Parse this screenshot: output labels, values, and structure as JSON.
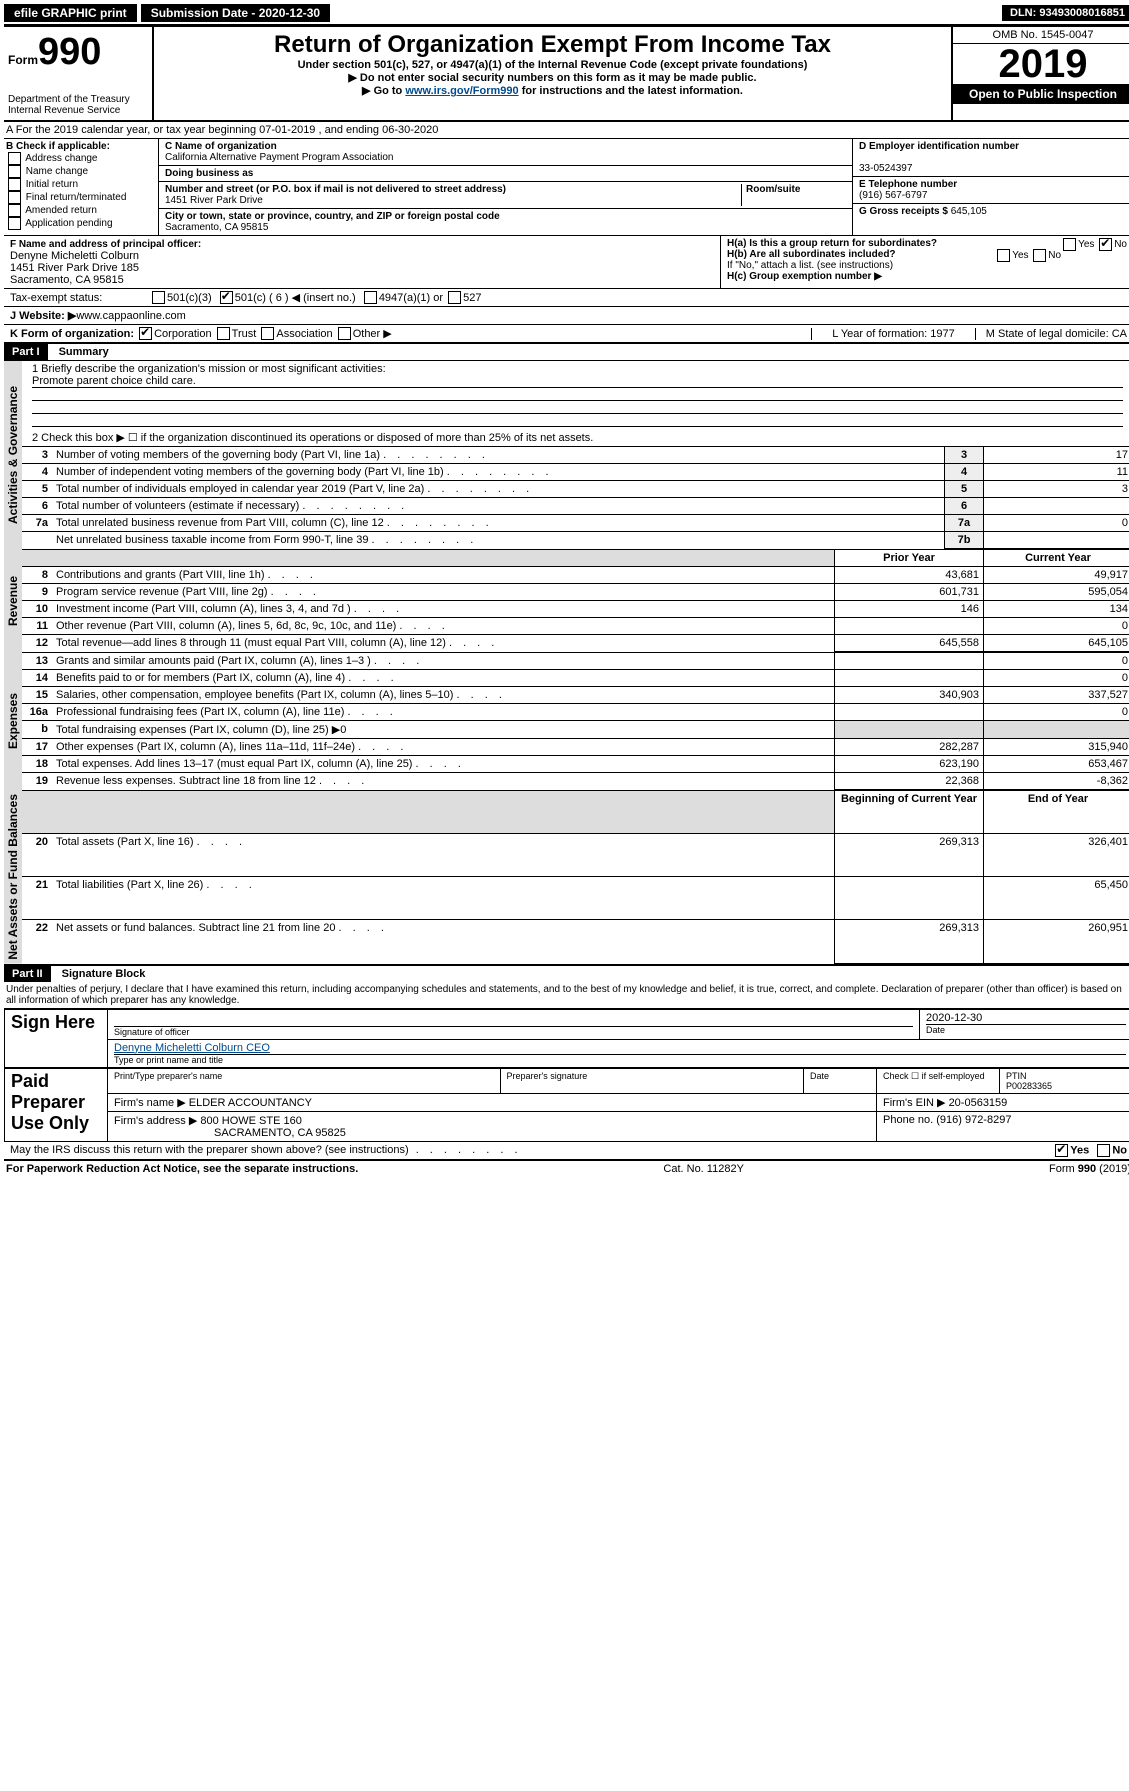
{
  "header": {
    "efile": "efile GRAPHIC print",
    "submission_label": "Submission Date - 2020-12-30",
    "dln": "DLN: 93493008016851"
  },
  "formhead": {
    "form_prefix": "Form",
    "form_number": "990",
    "dept": "Department of the Treasury\nInternal Revenue Service",
    "title": "Return of Organization Exempt From Income Tax",
    "subtitle": "Under section 501(c), 527, or 4947(a)(1) of the Internal Revenue Code (except private foundations)",
    "note1": "▶ Do not enter social security numbers on this form as it may be made public.",
    "note2_pre": "▶ Go to ",
    "note2_link": "www.irs.gov/Form990",
    "note2_post": " for instructions and the latest information.",
    "omb": "OMB No. 1545-0047",
    "year": "2019",
    "open": "Open to Public Inspection"
  },
  "lineA": {
    "text": "A For the 2019 calendar year, or tax year beginning 07-01-2019     , and ending 06-30-2020"
  },
  "boxB": {
    "label": "B Check if applicable:",
    "items": [
      "Address change",
      "Name change",
      "Initial return",
      "Final return/terminated",
      "Amended return",
      "Application pending"
    ]
  },
  "boxC": {
    "name_label": "C Name of organization",
    "name": "California Alternative Payment Program Association",
    "dba_label": "Doing business as",
    "addr_label": "Number and street (or P.O. box if mail is not delivered to street address)",
    "room_label": "Room/suite",
    "addr": "1451 River Park Drive",
    "city_label": "City or town, state or province, country, and ZIP or foreign postal code",
    "city": "Sacramento, CA  95815"
  },
  "boxD": {
    "label": "D Employer identification number",
    "ein": "33-0524397",
    "phone_label": "E Telephone number",
    "phone": "(916) 567-6797",
    "gross_label": "G Gross receipts $",
    "gross": "645,105"
  },
  "boxF": {
    "label": "F  Name and address of principal officer:",
    "name": "Denyne Micheletti Colburn",
    "addr1": "1451 River Park Drive 185",
    "addr2": "Sacramento, CA  95815"
  },
  "boxH": {
    "a": "H(a)  Is this a group return for subordinates?",
    "b": "H(b)  Are all subordinates included?",
    "note": "If \"No,\" attach a list. (see instructions)",
    "c": "H(c)  Group exemption number ▶",
    "yes": "Yes",
    "no": "No"
  },
  "taxexempt": {
    "label": "Tax-exempt status:",
    "o1": "501(c)(3)",
    "o2": "501(c) ( 6 ) ◀ (insert no.)",
    "o3": "4947(a)(1) or",
    "o4": "527"
  },
  "website": {
    "label": "J  Website: ▶  ",
    "url": "www.cappaonline.com"
  },
  "lineK": {
    "label": "K Form of organization:",
    "o1": "Corporation",
    "o2": "Trust",
    "o3": "Association",
    "o4": "Other ▶",
    "L": "L Year of formation: 1977",
    "M": "M State of legal domicile: CA"
  },
  "part1": {
    "badge": "Part I",
    "title": "Summary",
    "q1": "1  Briefly describe the organization's mission or most significant activities:",
    "q1ans": "Promote parent choice child care.",
    "q2": "2  Check this box ▶ ☐  if the organization discontinued its operations or disposed of more than 25% of its net assets."
  },
  "summary_rows": [
    {
      "n": "3",
      "t": "Number of voting members of the governing body (Part VI, line 1a)",
      "box": "3",
      "v": "17"
    },
    {
      "n": "4",
      "t": "Number of independent voting members of the governing body (Part VI, line 1b)",
      "box": "4",
      "v": "11"
    },
    {
      "n": "5",
      "t": "Total number of individuals employed in calendar year 2019 (Part V, line 2a)",
      "box": "5",
      "v": "3"
    },
    {
      "n": "6",
      "t": "Total number of volunteers (estimate if necessary)",
      "box": "6",
      "v": ""
    },
    {
      "n": "7a",
      "t": "Total unrelated business revenue from Part VIII, column (C), line 12",
      "box": "7a",
      "v": "0"
    },
    {
      "n": "",
      "t": "Net unrelated business taxable income from Form 990-T, line 39",
      "box": "7b",
      "v": ""
    }
  ],
  "fin_head": {
    "py": "Prior Year",
    "cy": "Current Year"
  },
  "revenue_rows": [
    {
      "n": "8",
      "t": "Contributions and grants (Part VIII, line 1h)",
      "py": "43,681",
      "cy": "49,917"
    },
    {
      "n": "9",
      "t": "Program service revenue (Part VIII, line 2g)",
      "py": "601,731",
      "cy": "595,054"
    },
    {
      "n": "10",
      "t": "Investment income (Part VIII, column (A), lines 3, 4, and 7d )",
      "py": "146",
      "cy": "134"
    },
    {
      "n": "11",
      "t": "Other revenue (Part VIII, column (A), lines 5, 6d, 8c, 9c, 10c, and 11e)",
      "py": "",
      "cy": "0"
    },
    {
      "n": "12",
      "t": "Total revenue—add lines 8 through 11 (must equal Part VIII, column (A), line 12)",
      "py": "645,558",
      "cy": "645,105"
    }
  ],
  "expense_rows": [
    {
      "n": "13",
      "t": "Grants and similar amounts paid (Part IX, column (A), lines 1–3 )",
      "py": "",
      "cy": "0"
    },
    {
      "n": "14",
      "t": "Benefits paid to or for members (Part IX, column (A), line 4)",
      "py": "",
      "cy": "0"
    },
    {
      "n": "15",
      "t": "Salaries, other compensation, employee benefits (Part IX, column (A), lines 5–10)",
      "py": "340,903",
      "cy": "337,527"
    },
    {
      "n": "16a",
      "t": "Professional fundraising fees (Part IX, column (A), line 11e)",
      "py": "",
      "cy": "0"
    },
    {
      "n": "b",
      "t": "Total fundraising expenses (Part IX, column (D), line 25) ▶0",
      "py": "—",
      "cy": "—"
    },
    {
      "n": "17",
      "t": "Other expenses (Part IX, column (A), lines 11a–11d, 11f–24e)",
      "py": "282,287",
      "cy": "315,940"
    },
    {
      "n": "18",
      "t": "Total expenses. Add lines 13–17 (must equal Part IX, column (A), line 25)",
      "py": "623,190",
      "cy": "653,467"
    },
    {
      "n": "19",
      "t": "Revenue less expenses. Subtract line 18 from line 12",
      "py": "22,368",
      "cy": "-8,362"
    }
  ],
  "na_head": {
    "b": "Beginning of Current Year",
    "e": "End of Year"
  },
  "na_rows": [
    {
      "n": "20",
      "t": "Total assets (Part X, line 16)",
      "py": "269,313",
      "cy": "326,401"
    },
    {
      "n": "21",
      "t": "Total liabilities (Part X, line 26)",
      "py": "",
      "cy": "65,450"
    },
    {
      "n": "22",
      "t": "Net assets or fund balances. Subtract line 21 from line 20",
      "py": "269,313",
      "cy": "260,951"
    }
  ],
  "part2": {
    "badge": "Part II",
    "title": "Signature Block",
    "decl": "Under penalties of perjury, I declare that I have examined this return, including accompanying schedules and statements, and to the best of my knowledge and belief, it is true, correct, and complete. Declaration of preparer (other than officer) is based on all information of which preparer has any knowledge."
  },
  "sign": {
    "here": "Sign Here",
    "sig_label": "Signature of officer",
    "date": "2020-12-30",
    "date_label": "Date",
    "name": "Denyne Micheletti Colburn CEO",
    "name_label": "Type or print name and title"
  },
  "paid": {
    "label": "Paid Preparer Use Only",
    "h1": "Print/Type preparer's name",
    "h2": "Preparer's signature",
    "h3": "Date",
    "h4_a": "Check ☐ if self-employed",
    "h5": "PTIN",
    "ptin": "P00283365",
    "firm_label": "Firm's name     ▶",
    "firm": "ELDER ACCOUNTANCY",
    "ein_label": "Firm's EIN ▶",
    "ein": "20-0563159",
    "addr_label": "Firm's address ▶",
    "addr1": "800 HOWE STE 160",
    "addr2": "SACRAMENTO, CA  95825",
    "phone_label": "Phone no.",
    "phone": "(916) 972-8297"
  },
  "discuss": {
    "q": "May the IRS discuss this return with the preparer shown above? (see instructions)",
    "yes": "Yes",
    "no": "No"
  },
  "footer": {
    "l": "For Paperwork Reduction Act Notice, see the separate instructions.",
    "m": "Cat. No. 11282Y",
    "r": "Form 990 (2019)"
  },
  "vtabs": {
    "ag": "Activities & Governance",
    "rev": "Revenue",
    "exp": "Expenses",
    "na": "Net Assets or Fund Balances"
  }
}
